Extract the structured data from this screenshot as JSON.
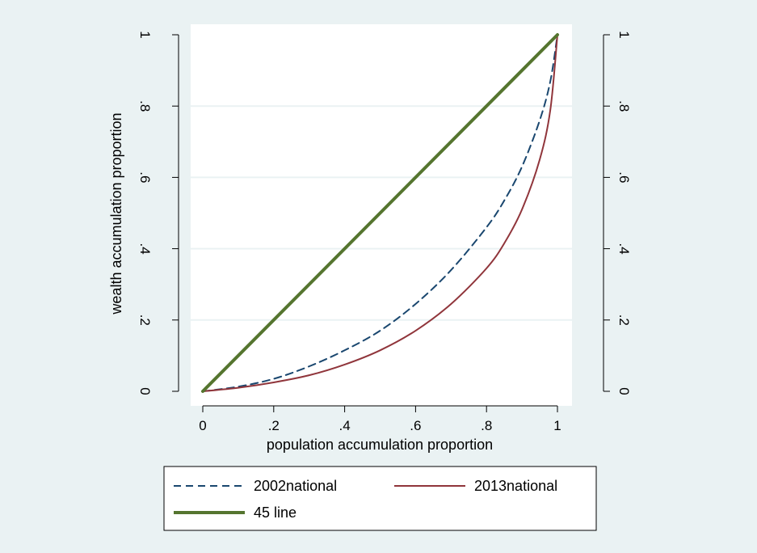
{
  "chart_data": {
    "type": "line",
    "xlabel": "population accumulation proportion",
    "ylabel": "wealth accumulation proportion",
    "xlim": [
      0,
      1
    ],
    "ylim": [
      0,
      1
    ],
    "x_ticks": [
      "0",
      ".2",
      ".4",
      ".6",
      ".8",
      "1"
    ],
    "y_ticks": [
      "0",
      ".2",
      ".4",
      ".6",
      ".8",
      "1"
    ],
    "grid": true,
    "legend_position": "bottom",
    "series": [
      {
        "name": "2002national",
        "color": "#1a476f",
        "style": "dashed",
        "x": [
          0,
          0.1,
          0.2,
          0.3,
          0.4,
          0.5,
          0.6,
          0.7,
          0.8,
          0.85,
          0.9,
          0.95,
          0.98,
          1
        ],
        "y": [
          0,
          0.013,
          0.035,
          0.07,
          0.115,
          0.17,
          0.245,
          0.34,
          0.46,
          0.535,
          0.63,
          0.76,
          0.87,
          1
        ]
      },
      {
        "name": "2013national",
        "color": "#90353b",
        "style": "solid",
        "x": [
          0,
          0.1,
          0.2,
          0.3,
          0.4,
          0.5,
          0.6,
          0.7,
          0.8,
          0.85,
          0.9,
          0.95,
          0.98,
          1
        ],
        "y": [
          0,
          0.01,
          0.025,
          0.045,
          0.075,
          0.115,
          0.17,
          0.245,
          0.345,
          0.415,
          0.51,
          0.65,
          0.79,
          1
        ]
      },
      {
        "name": "45 line",
        "color": "#55752f",
        "style": "solid-thick",
        "x": [
          0,
          1
        ],
        "y": [
          0,
          1
        ]
      }
    ]
  }
}
